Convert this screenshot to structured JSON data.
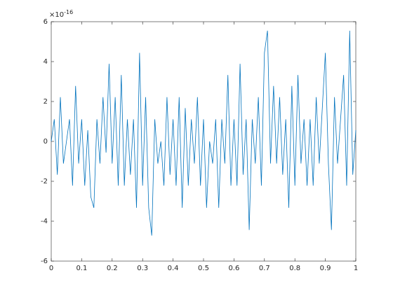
{
  "chart_data": {
    "type": "line",
    "y_exponent_label": {
      "base": "×10",
      "exponent": "-16"
    },
    "x": [
      0,
      0.01,
      0.02,
      0.03,
      0.04,
      0.05,
      0.06,
      0.07,
      0.08,
      0.09,
      0.1,
      0.11,
      0.12,
      0.13,
      0.14,
      0.15,
      0.16,
      0.17,
      0.18,
      0.19,
      0.2,
      0.21,
      0.22,
      0.23,
      0.24,
      0.25,
      0.26,
      0.27,
      0.28,
      0.29,
      0.3,
      0.31,
      0.32,
      0.33,
      0.34,
      0.35,
      0.36,
      0.37,
      0.38,
      0.39,
      0.4,
      0.41,
      0.42,
      0.43,
      0.44,
      0.45,
      0.46,
      0.47,
      0.48,
      0.49,
      0.5,
      0.51,
      0.52,
      0.53,
      0.54,
      0.55,
      0.56,
      0.57,
      0.58,
      0.59,
      0.6,
      0.61,
      0.62,
      0.63,
      0.64,
      0.65,
      0.66,
      0.67,
      0.68,
      0.69,
      0.7,
      0.71,
      0.72,
      0.73,
      0.74,
      0.75,
      0.76,
      0.77,
      0.78,
      0.79,
      0.8,
      0.81,
      0.82,
      0.83,
      0.84,
      0.85,
      0.86,
      0.87,
      0.88,
      0.89,
      0.9,
      0.91,
      0.92,
      0.93,
      0.94,
      0.95,
      0.96,
      0.97,
      0.98,
      0.99,
      1
    ],
    "series": [
      {
        "color": "#0072bd",
        "values": [
          0,
          1.11,
          -1.67,
          2.22,
          -1.11,
          0,
          1.11,
          -2.22,
          2.78,
          -1.11,
          1.11,
          -2.22,
          0.56,
          -2.78,
          -3.33,
          1.11,
          -1.11,
          2.22,
          -0.56,
          3.89,
          -1.11,
          2.22,
          -2.22,
          3.33,
          -2.22,
          1.11,
          -1.67,
          1.11,
          -3.33,
          4.44,
          -2.22,
          2.22,
          -3.33,
          -4.72,
          1.11,
          -1.11,
          0,
          -2.22,
          2.22,
          -1.67,
          1.11,
          -2.22,
          2.22,
          -3.33,
          1.67,
          -2.22,
          1.11,
          -1.11,
          2.22,
          -2.22,
          1.11,
          -3.33,
          0,
          -1.11,
          1.11,
          -3.33,
          1.11,
          -1.11,
          3.33,
          -2.22,
          1.11,
          -2.22,
          3.89,
          -1.67,
          1.11,
          -4.44,
          1.11,
          -1.11,
          2.22,
          -2.22,
          4.44,
          5.55,
          -1.11,
          2.78,
          -1.11,
          2.22,
          -1.67,
          1.11,
          -3.33,
          2.78,
          -2.22,
          3.33,
          -1.11,
          1.11,
          -2.22,
          1.11,
          -2.22,
          2.22,
          -1.11,
          1.67,
          4.44,
          -1.11,
          -4.44,
          2.22,
          -1.11,
          1.11,
          3.33,
          -2.22,
          5.55,
          -1.67,
          0.56
        ]
      }
    ],
    "xlim": [
      0,
      1
    ],
    "ylim": [
      -6,
      6
    ],
    "xticks": [
      0,
      0.1,
      0.2,
      0.3,
      0.4,
      0.5,
      0.6,
      0.7,
      0.8,
      0.9,
      1
    ],
    "yticks": [
      -6,
      -4,
      -2,
      0,
      2,
      4,
      6
    ]
  }
}
